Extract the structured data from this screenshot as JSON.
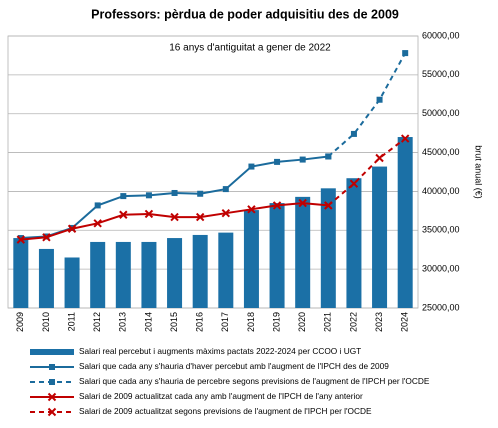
{
  "chart_data": {
    "type": "bar",
    "title": "Professors: pèrdua de poder adquisitiu des de 2009",
    "annotation": "16 anys d'antiguitat a gener de 2022",
    "y_label": "brut anual (€)",
    "categories": [
      "2009",
      "2010",
      "2011",
      "2012",
      "2013",
      "2014",
      "2015",
      "2016",
      "2017",
      "2018",
      "2019",
      "2020",
      "2021",
      "2022",
      "2023",
      "2024"
    ],
    "series": [
      {
        "name": "Salari real percebut i augments màxims pactats 2022-2024 per CCOO i UGT",
        "style": "bar",
        "color": "#1b70a6",
        "values": [
          34000,
          32600,
          31500,
          33500,
          33500,
          33500,
          34000,
          34400,
          34700,
          37600,
          38500,
          39300,
          40400,
          41700,
          43200,
          47000
        ]
      },
      {
        "name": "Salari que cada any s'hauria d'haver percebut amb l'augment de l'IPCH des de 2009",
        "style": "line",
        "dash": false,
        "marker": "square",
        "color": "#1b6b9c",
        "values": [
          34000,
          34200,
          35300,
          38200,
          39400,
          39500,
          39800,
          39700,
          40300,
          43200,
          43800,
          44100,
          44500,
          null,
          null,
          null
        ]
      },
      {
        "name": "Salari que cada any s'hauria de percebre segons previsions de l'augment de l'IPCH per l'OCDE",
        "style": "line",
        "dash": true,
        "marker": "square",
        "color": "#1b6b9c",
        "values": [
          null,
          null,
          null,
          null,
          null,
          null,
          null,
          null,
          null,
          null,
          null,
          null,
          44500,
          47400,
          51800,
          57800
        ]
      },
      {
        "name": "Salari de 2009 actualitzat cada any amb l'augment de l'IPCH de l'any anterior",
        "style": "line",
        "dash": false,
        "marker": "x",
        "color": "#c00000",
        "values": [
          33800,
          34100,
          35200,
          35900,
          37000,
          37100,
          36700,
          36700,
          37200,
          37700,
          38200,
          38500,
          38200,
          null,
          null,
          null
        ]
      },
      {
        "name": "Salari de 2009 actualitzat segons previsions de l'augment de l'IPCH per l'OCDE",
        "style": "line",
        "dash": true,
        "marker": "x",
        "color": "#c00000",
        "values": [
          null,
          null,
          null,
          null,
          null,
          null,
          null,
          null,
          null,
          null,
          null,
          null,
          38200,
          41000,
          44300,
          46800
        ]
      }
    ],
    "ylim": [
      25000,
      60000
    ],
    "yticks": [
      {
        "value": 25000,
        "label": "25000,00"
      },
      {
        "value": 30000,
        "label": "30000,00"
      },
      {
        "value": 35000,
        "label": "35000,00"
      },
      {
        "value": 40000,
        "label": "40000,00"
      },
      {
        "value": 45000,
        "label": "45000,00"
      },
      {
        "value": 50000,
        "label": "50000,00"
      },
      {
        "value": 55000,
        "label": "55000,00"
      },
      {
        "value": 60000,
        "label": "60000,00"
      }
    ],
    "grid": true
  }
}
